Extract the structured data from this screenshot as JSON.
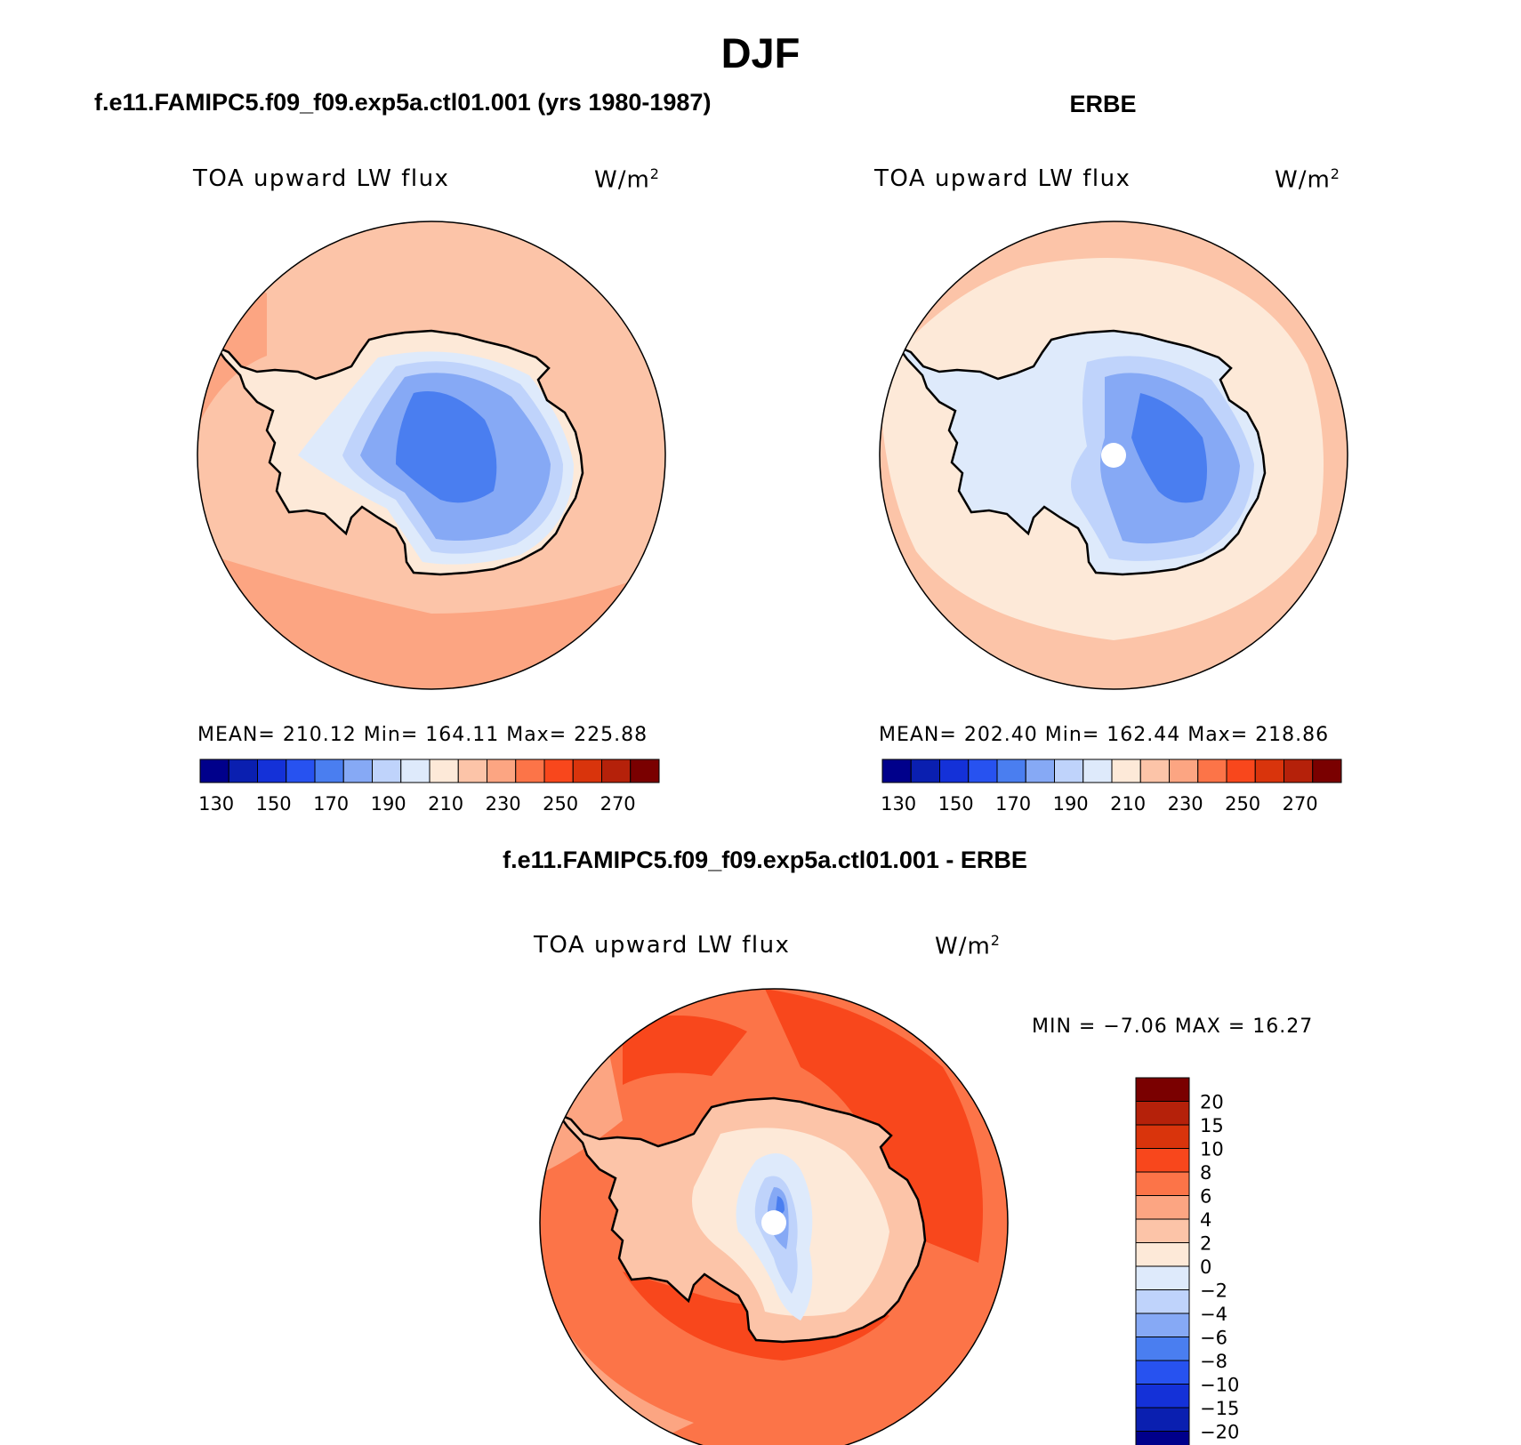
{
  "page": {
    "title": "DJF",
    "left_panel_title": "f.e11.FAMIPC5.f09_f09.exp5a.ctl01.001 (yrs 1980-1987)",
    "right_panel_title": "ERBE",
    "diff_panel_title": "f.e11.FAMIPC5.f09_f09.exp5a.ctl01.001 - ERBE",
    "variable": "TOA upward LW flux",
    "units_base": "W/m",
    "units_exp": "2"
  },
  "model": {
    "stats": "MEAN= 210.12   Min= 164.11   Max= 225.88"
  },
  "erbe": {
    "stats": "MEAN= 202.40   Min= 162.44   Max= 218.86"
  },
  "diff": {
    "stats": "MIN =   −7.06 MAX =   16.27"
  },
  "chart_data": [
    {
      "type": "heatmap",
      "projection": "south polar stereographic",
      "title": "f.e11.FAMIPC5.f09_f09.exp5a.ctl01.001 (yrs 1980-1987)",
      "variable": "TOA upward LW flux",
      "units": "W/m2",
      "mean": 210.12,
      "min": 164.11,
      "max": 225.88,
      "colorbar_ticks": [
        "130",
        "150",
        "170",
        "190",
        "210",
        "230",
        "250",
        "270"
      ],
      "colors": [
        "#00008b",
        "#0a1fb0",
        "#1431d8",
        "#2752f0",
        "#4a7ef0",
        "#86a9f5",
        "#bfd3fb",
        "#deeafb",
        "#fde9d8",
        "#fcc4a8",
        "#fca582",
        "#fc7448",
        "#f8471c",
        "#d9340c",
        "#b5210a",
        "#7a0000"
      ]
    },
    {
      "type": "heatmap",
      "projection": "south polar stereographic",
      "title": "ERBE",
      "variable": "TOA upward LW flux",
      "units": "W/m2",
      "mean": 202.4,
      "min": 162.44,
      "max": 218.86,
      "colorbar_ticks": [
        "130",
        "150",
        "170",
        "190",
        "210",
        "230",
        "250",
        "270"
      ],
      "colors": [
        "#00008b",
        "#0a1fb0",
        "#1431d8",
        "#2752f0",
        "#4a7ef0",
        "#86a9f5",
        "#bfd3fb",
        "#deeafb",
        "#fde9d8",
        "#fcc4a8",
        "#fca582",
        "#fc7448",
        "#f8471c",
        "#d9340c",
        "#b5210a",
        "#7a0000"
      ]
    },
    {
      "type": "heatmap",
      "projection": "south polar stereographic",
      "title": "f.e11.FAMIPC5.f09_f09.exp5a.ctl01.001 - ERBE",
      "variable": "TOA upward LW flux",
      "units": "W/m2",
      "min": -7.06,
      "max": 16.27,
      "colorbar_ticks": [
        "20",
        "15",
        "10",
        "8",
        "6",
        "4",
        "2",
        "0",
        "−2",
        "−4",
        "−6",
        "−8",
        "−10",
        "−15",
        "−20"
      ],
      "colors": [
        "#7a0000",
        "#b5210a",
        "#d9340c",
        "#f8471c",
        "#fc7448",
        "#fca582",
        "#fcc4a8",
        "#fde9d8",
        "#deeafb",
        "#bfd3fb",
        "#86a9f5",
        "#4a7ef0",
        "#2752f0",
        "#1431d8",
        "#0a1fb0",
        "#00008b"
      ]
    }
  ]
}
